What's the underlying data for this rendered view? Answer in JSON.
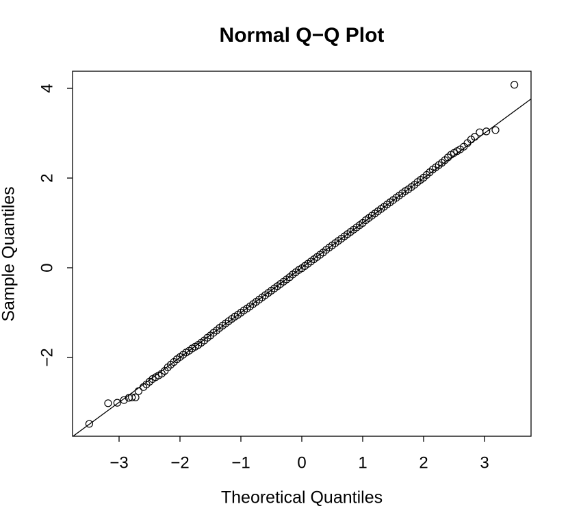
{
  "chart_data": {
    "type": "scatter",
    "title": "Normal Q−Q Plot",
    "x_label": "Theoretical Quantiles",
    "y_label": "Sample Quantiles",
    "xlim": [
      -3.764,
      3.764
    ],
    "ylim": [
      -3.756,
      4.382
    ],
    "xticks": [
      {
        "value": -3,
        "label": "−3"
      },
      {
        "value": -2,
        "label": "−2"
      },
      {
        "value": -1,
        "label": "−1"
      },
      0,
      1,
      2,
      3
    ],
    "yticks": [
      {
        "value": -2,
        "label": "−2"
      },
      0,
      2,
      4
    ],
    "reference_line": {
      "slope": 1.0,
      "intercept": 0.0
    },
    "color": "#000000",
    "x": [
      -3.49,
      -3.18,
      -3.03,
      -2.92,
      -2.84,
      -2.79,
      -2.73,
      -2.68,
      -2.6,
      -2.55,
      -2.5,
      -2.45,
      -2.4,
      -2.35,
      -2.3,
      -2.25,
      -2.2,
      -2.15,
      -2.1,
      -2.05,
      -2.0,
      -1.95,
      -1.9,
      -1.85,
      -1.8,
      -1.75,
      -1.7,
      -1.65,
      -1.6,
      -1.55,
      -1.5,
      -1.45,
      -1.4,
      -1.35,
      -1.3,
      -1.25,
      -1.2,
      -1.15,
      -1.1,
      -1.05,
      -1.0,
      -0.95,
      -0.9,
      -0.85,
      -0.8,
      -0.75,
      -0.7,
      -0.65,
      -0.6,
      -0.55,
      -0.5,
      -0.45,
      -0.4,
      -0.35,
      -0.3,
      -0.25,
      -0.2,
      -0.15,
      -0.1,
      -0.05,
      0.0,
      0.05,
      0.1,
      0.15,
      0.2,
      0.25,
      0.3,
      0.35,
      0.4,
      0.45,
      0.5,
      0.55,
      0.6,
      0.65,
      0.7,
      0.75,
      0.8,
      0.85,
      0.9,
      0.95,
      1.0,
      1.05,
      1.1,
      1.15,
      1.2,
      1.25,
      1.3,
      1.35,
      1.4,
      1.45,
      1.5,
      1.55,
      1.6,
      1.65,
      1.7,
      1.75,
      1.8,
      1.85,
      1.9,
      1.95,
      2.0,
      2.05,
      2.1,
      2.15,
      2.2,
      2.25,
      2.3,
      2.35,
      2.4,
      2.45,
      2.5,
      2.55,
      2.6,
      2.66,
      2.72,
      2.78,
      2.84,
      2.92,
      3.03,
      3.18,
      3.49
    ],
    "values": [
      -3.48,
      -3.02,
      -3.01,
      -2.95,
      -2.9,
      -2.89,
      -2.89,
      -2.75,
      -2.66,
      -2.6,
      -2.54,
      -2.48,
      -2.44,
      -2.4,
      -2.36,
      -2.3,
      -2.22,
      -2.16,
      -2.1,
      -2.04,
      -1.99,
      -1.94,
      -1.89,
      -1.85,
      -1.8,
      -1.76,
      -1.72,
      -1.67,
      -1.62,
      -1.56,
      -1.51,
      -1.45,
      -1.4,
      -1.34,
      -1.29,
      -1.24,
      -1.19,
      -1.14,
      -1.09,
      -1.05,
      -1.0,
      -0.95,
      -0.91,
      -0.86,
      -0.81,
      -0.76,
      -0.71,
      -0.66,
      -0.61,
      -0.56,
      -0.51,
      -0.46,
      -0.41,
      -0.36,
      -0.31,
      -0.26,
      -0.21,
      -0.15,
      -0.1,
      -0.05,
      -0.01,
      0.04,
      0.09,
      0.14,
      0.19,
      0.24,
      0.29,
      0.34,
      0.4,
      0.45,
      0.5,
      0.55,
      0.6,
      0.65,
      0.7,
      0.75,
      0.8,
      0.85,
      0.9,
      0.95,
      1.0,
      1.06,
      1.11,
      1.16,
      1.21,
      1.26,
      1.31,
      1.36,
      1.41,
      1.46,
      1.51,
      1.56,
      1.61,
      1.66,
      1.71,
      1.75,
      1.8,
      1.85,
      1.91,
      1.96,
      2.01,
      2.07,
      2.13,
      2.19,
      2.24,
      2.29,
      2.34,
      2.4,
      2.46,
      2.52,
      2.56,
      2.6,
      2.64,
      2.7,
      2.78,
      2.86,
      2.92,
      3.02,
      3.04,
      3.07,
      4.08
    ]
  }
}
